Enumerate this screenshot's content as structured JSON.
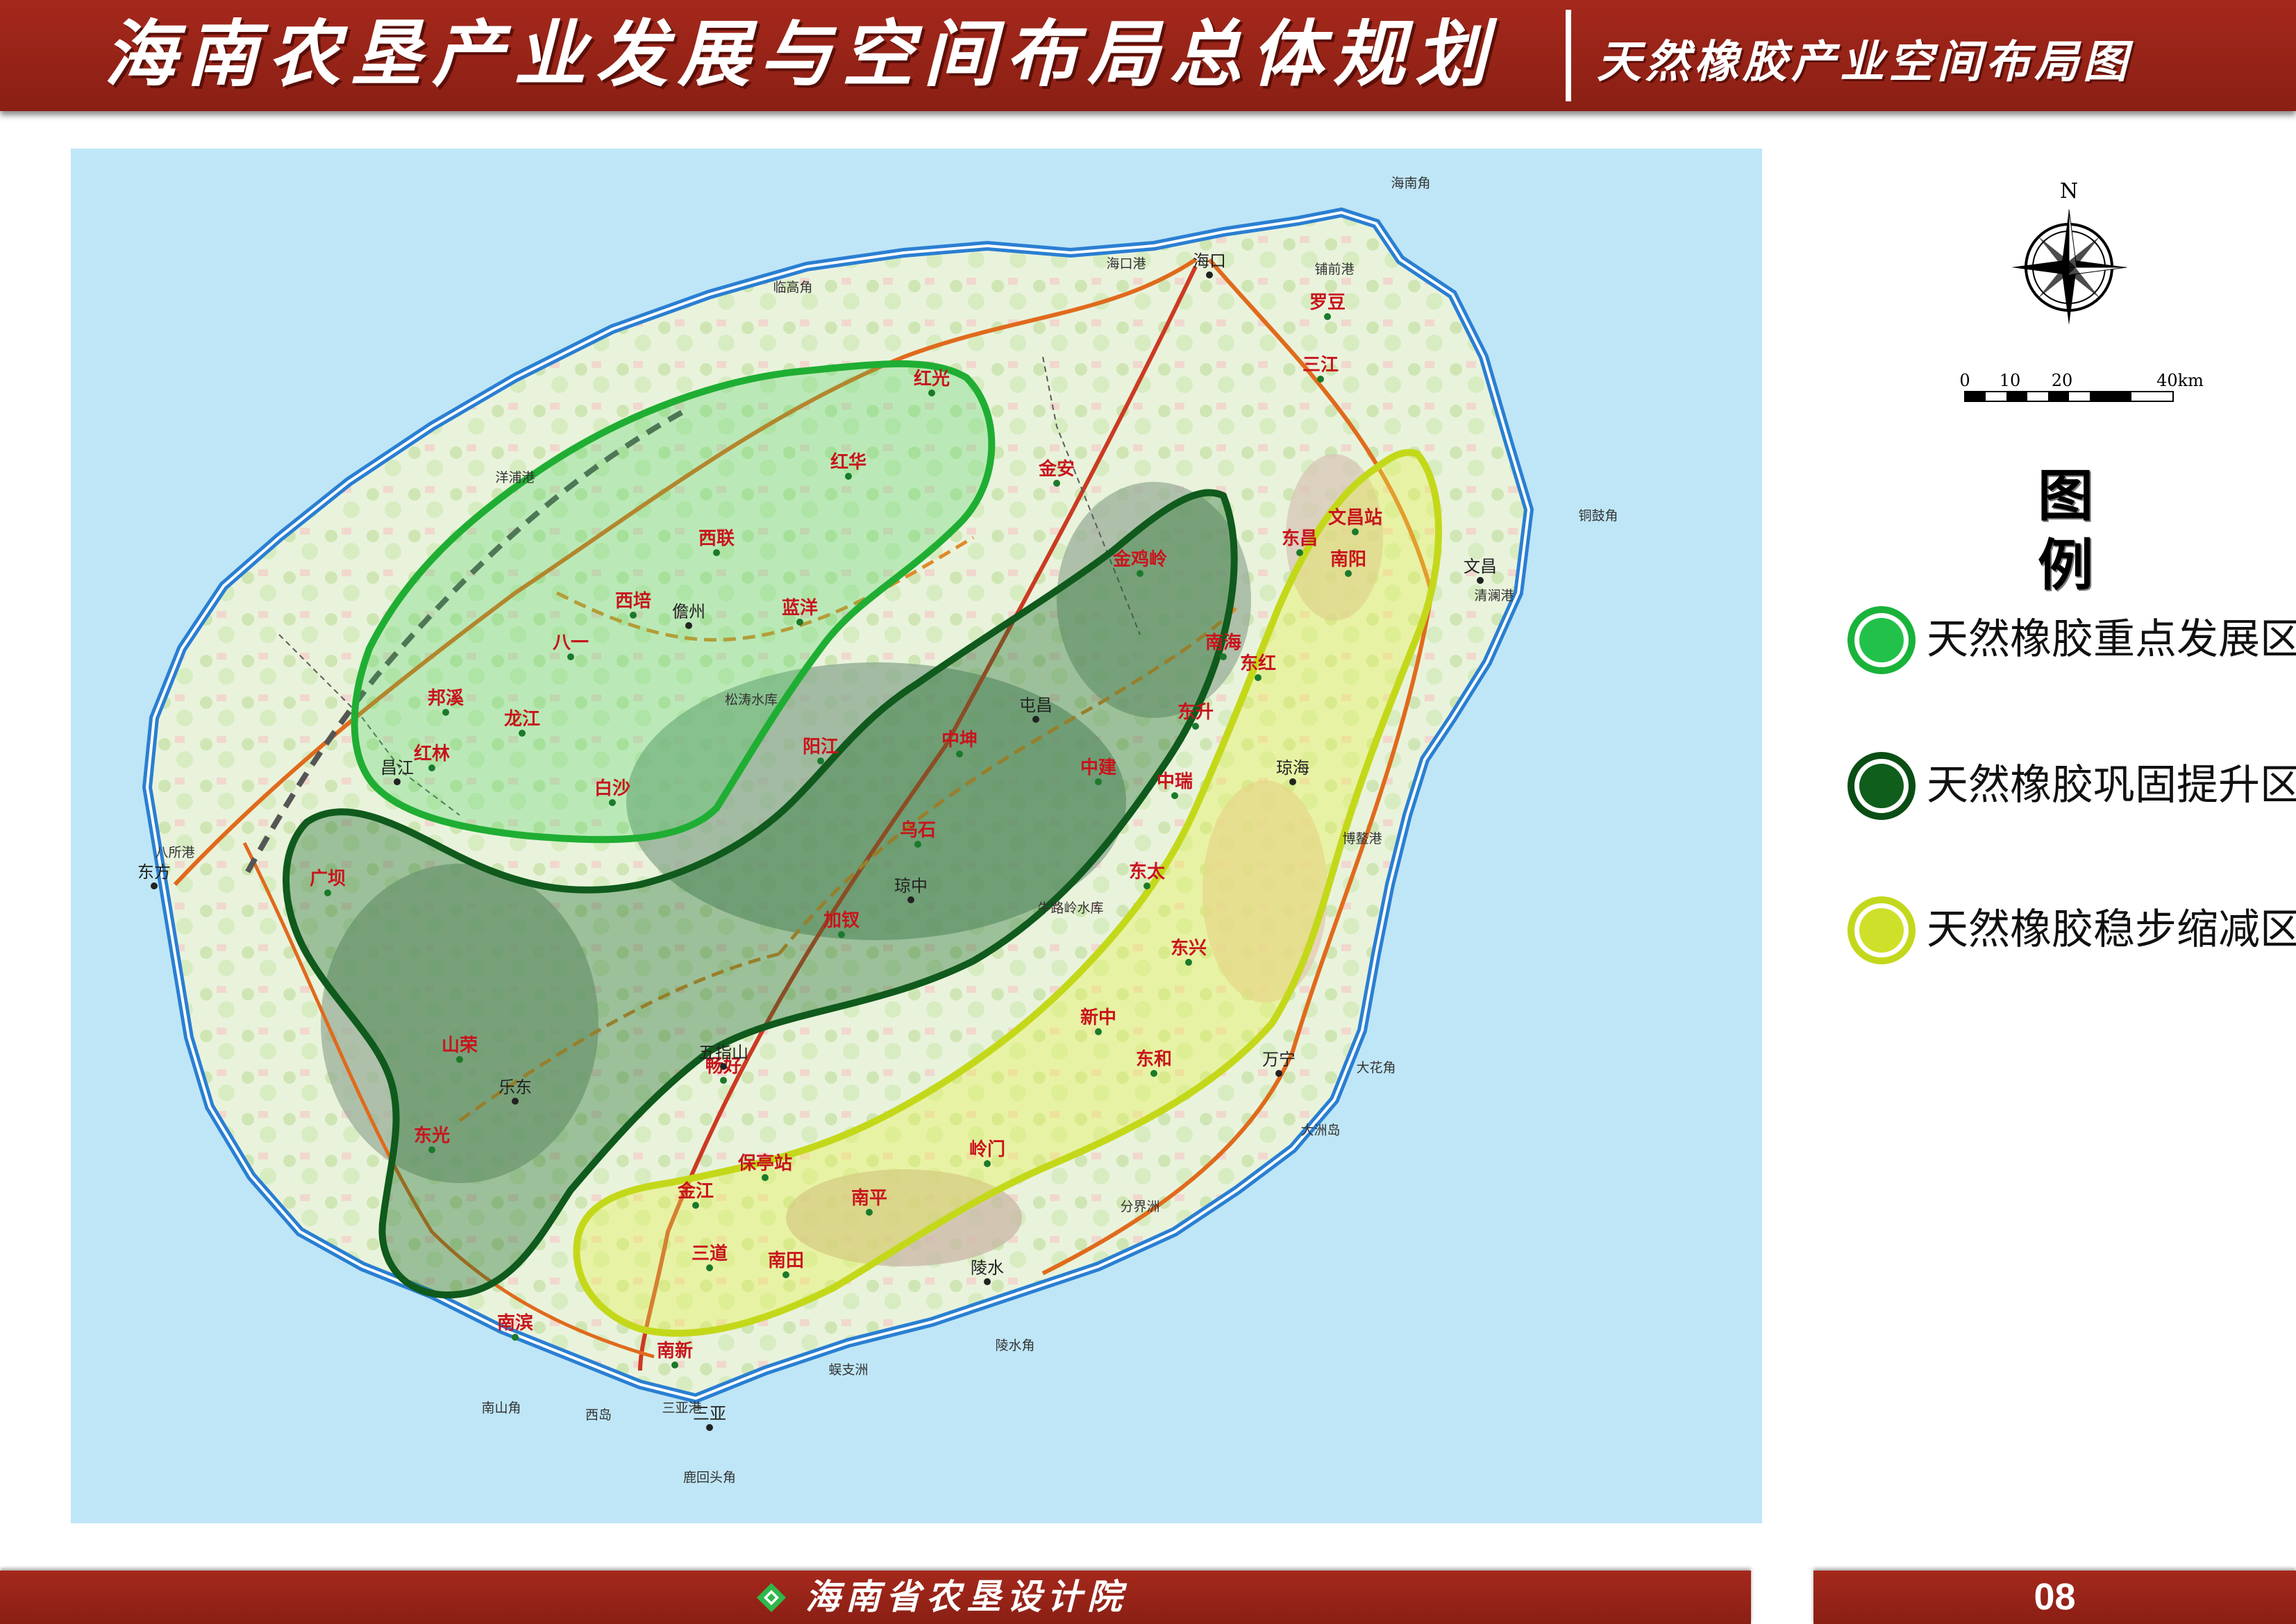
{
  "header": {
    "title": "海南农垦产业发展与空间布局总体规划",
    "subtitle": "天然橡胶产业空间布局图"
  },
  "map": {
    "places_red": [
      {
        "id": "honggang",
        "text": "红光"
      },
      {
        "id": "jinan",
        "text": "金安"
      },
      {
        "id": "hongfu",
        "text": "红华"
      },
      {
        "id": "xilian",
        "text": "西联"
      },
      {
        "id": "xipei",
        "text": "西培"
      },
      {
        "id": "lanyang",
        "text": "蓝洋"
      },
      {
        "id": "bayi",
        "text": "八一"
      },
      {
        "id": "bangxi",
        "text": "邦溪"
      },
      {
        "id": "longjiang",
        "text": "龙江"
      },
      {
        "id": "honglin",
        "text": "红林"
      },
      {
        "id": "baisha",
        "text": "白沙"
      },
      {
        "id": "jinjiling",
        "text": "金鸡岭"
      },
      {
        "id": "yangjiang",
        "text": "阳江"
      },
      {
        "id": "zhongkun",
        "text": "中坤"
      },
      {
        "id": "zhongjian",
        "text": "中建"
      },
      {
        "id": "wushi",
        "text": "乌石"
      },
      {
        "id": "guangba",
        "text": "广坝"
      },
      {
        "id": "jiachai",
        "text": "加钗"
      },
      {
        "id": "shanrong",
        "text": "山荣"
      },
      {
        "id": "dongguang",
        "text": "东光"
      },
      {
        "id": "changhao",
        "text": "畅好"
      },
      {
        "id": "baotingzhan",
        "text": "保亭站"
      },
      {
        "id": "jinjiang",
        "text": "金江"
      },
      {
        "id": "sandao",
        "text": "三道"
      },
      {
        "id": "nantian",
        "text": "南田"
      },
      {
        "id": "nanping",
        "text": "南平"
      },
      {
        "id": "lingmen",
        "text": "岭门"
      },
      {
        "id": "xinzhong",
        "text": "新中"
      },
      {
        "id": "donghe",
        "text": "东和"
      },
      {
        "id": "dongxing",
        "text": "东兴"
      },
      {
        "id": "dongtai",
        "text": "东太"
      },
      {
        "id": "zhongrui",
        "text": "中瑞"
      },
      {
        "id": "dongsheng",
        "text": "东升"
      },
      {
        "id": "nanhai",
        "text": "南海"
      },
      {
        "id": "donghong",
        "text": "东红"
      },
      {
        "id": "dongchang",
        "text": "东昌"
      },
      {
        "id": "wenchangzhan",
        "text": "文昌站"
      },
      {
        "id": "nanyang",
        "text": "南阳"
      },
      {
        "id": "luodou",
        "text": "罗豆"
      },
      {
        "id": "sanjiang",
        "text": "三江"
      },
      {
        "id": "nanbin",
        "text": "南滨"
      },
      {
        "id": "nanxin",
        "text": "南新"
      }
    ],
    "places_black": [
      {
        "id": "haikou",
        "text": "海口"
      },
      {
        "id": "dongfang",
        "text": "东方"
      },
      {
        "id": "danzhou",
        "text": "儋州"
      },
      {
        "id": "wuzhishan",
        "text": "五指山"
      },
      {
        "id": "qionghai",
        "text": "琼海"
      },
      {
        "id": "wanning",
        "text": "万宁"
      },
      {
        "id": "lingshui",
        "text": "陵水"
      },
      {
        "id": "sanya",
        "text": "三亚"
      },
      {
        "id": "wenchang",
        "text": "文昌"
      },
      {
        "id": "qiongzhong",
        "text": "琼中"
      },
      {
        "id": "tunchang",
        "text": "屯昌"
      },
      {
        "id": "ledong",
        "text": "乐东"
      },
      {
        "id": "changjiang",
        "text": "昌江"
      }
    ],
    "places_small": [
      {
        "id": "haikougang",
        "text": "海口港"
      },
      {
        "id": "hainanjiao",
        "text": "海南角"
      },
      {
        "id": "linggaojiao",
        "text": "临高角"
      },
      {
        "id": "puqiangang",
        "text": "铺前港"
      },
      {
        "id": "yangpugang",
        "text": "洋浦港"
      },
      {
        "id": "tonggujiao",
        "text": "铜鼓角"
      },
      {
        "id": "qinglangang",
        "text": "清澜港"
      },
      {
        "id": "baosuogang",
        "text": "博鳌港"
      },
      {
        "id": "basuogang",
        "text": "八所港"
      },
      {
        "id": "dahuajiao",
        "text": "大花角"
      },
      {
        "id": "dazhoudao",
        "text": "大洲岛"
      },
      {
        "id": "fenjiezhou",
        "text": "分界洲"
      },
      {
        "id": "lingshuijiao",
        "text": "陵水角"
      },
      {
        "id": "wuzhizhou",
        "text": "蜈支洲"
      },
      {
        "id": "nanshanjiao",
        "text": "南山角"
      },
      {
        "id": "xidao",
        "text": "西岛"
      },
      {
        "id": "sanyagang",
        "text": "三亚港"
      },
      {
        "id": "luhuitoujiao",
        "text": "鹿回头角"
      },
      {
        "id": "songtaoshuiku",
        "text": "松涛水库"
      },
      {
        "id": "niululingshuiku",
        "text": "牛路岭水库"
      }
    ]
  },
  "compass": {
    "north_label": "N"
  },
  "scale": {
    "ticks": [
      "0",
      "10",
      "20",
      "40km"
    ]
  },
  "legend": {
    "title": "图 例",
    "items": [
      {
        "id": "key-development",
        "label": "天然橡胶重点发展区",
        "color": "#22c24a"
      },
      {
        "id": "consolidation",
        "label": "天然橡胶巩固提升区",
        "color": "#0f5e1c"
      },
      {
        "id": "steady-reduction",
        "label": "天然橡胶稳步缩减区",
        "color": "#cfe02a"
      }
    ]
  },
  "footer": {
    "institute": "海南省农垦设计院",
    "page_number": "08"
  }
}
